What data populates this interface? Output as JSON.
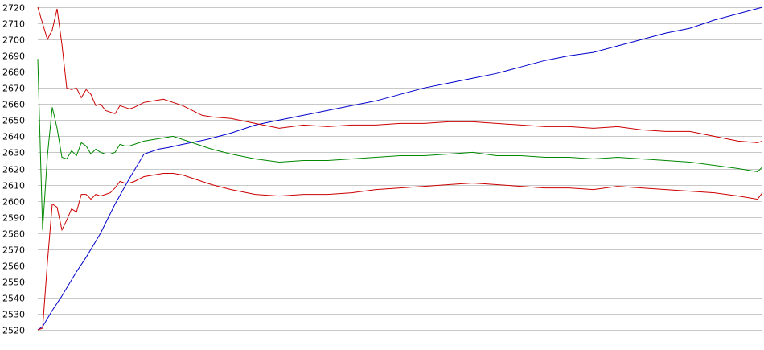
{
  "chart_data": {
    "type": "line",
    "title": "",
    "xlabel": "",
    "ylabel": "",
    "grid": "horizontal",
    "legend": "none",
    "ylim": [
      2520,
      2720
    ],
    "xlim": [
      0,
      150
    ],
    "yticks": [
      2720,
      2710,
      2700,
      2690,
      2680,
      2670,
      2660,
      2650,
      2640,
      2630,
      2620,
      2610,
      2600,
      2590,
      2580,
      2570,
      2560,
      2550,
      2540,
      2530,
      2520
    ],
    "series": [
      {
        "color": "#0000cc",
        "x": [
          0,
          1,
          3,
          5,
          8,
          10,
          13,
          16,
          19,
          22,
          25,
          27,
          30,
          35,
          40,
          45,
          50,
          55,
          60,
          65,
          70,
          75,
          80,
          85,
          90,
          95,
          100,
          105,
          110,
          115,
          120,
          125,
          130,
          135,
          140,
          145,
          150
        ],
        "values": [
          2520,
          2522,
          2532,
          2541,
          2556,
          2565,
          2580,
          2598,
          2614,
          2629,
          2632,
          2633,
          2635,
          2638,
          2642,
          2647,
          2650,
          2653,
          2656,
          2659,
          2662,
          2666,
          2670,
          2673,
          2676,
          2679,
          2683,
          2687,
          2690,
          2692,
          2696,
          2700,
          2704,
          2707,
          2712,
          2716,
          2720
        ]
      },
      {
        "color": "#cc0000",
        "x": [
          0,
          1,
          2,
          3,
          4,
          5,
          6,
          7,
          8,
          9,
          10,
          11,
          12,
          13,
          14,
          15,
          16,
          17,
          18,
          19,
          20,
          22,
          24,
          26,
          28,
          30,
          32,
          34,
          36,
          40,
          45,
          50,
          55,
          60,
          65,
          70,
          75,
          80,
          85,
          90,
          95,
          100,
          105,
          110,
          115,
          120,
          125,
          130,
          135,
          140,
          145,
          149,
          150
        ],
        "values": [
          2720,
          2710,
          2700,
          2706,
          2719,
          2697,
          2670,
          2669,
          2670,
          2664,
          2669,
          2666,
          2659,
          2660,
          2656,
          2655,
          2654,
          2659,
          2658,
          2657,
          2658,
          2661,
          2662,
          2663,
          2661,
          2659,
          2656,
          2653,
          2652,
          2651,
          2648,
          2645,
          2647,
          2646,
          2647,
          2647,
          2648,
          2648,
          2649,
          2649,
          2648,
          2647,
          2646,
          2646,
          2645,
          2646,
          2644,
          2643,
          2643,
          2640,
          2637,
          2636,
          2637
        ]
      },
      {
        "color": "#008800",
        "x": [
          0,
          1,
          2,
          3,
          4,
          5,
          6,
          7,
          8,
          9,
          10,
          11,
          12,
          13,
          14,
          15,
          16,
          17,
          18,
          19,
          20,
          22,
          24,
          26,
          28,
          30,
          32,
          34,
          36,
          40,
          45,
          50,
          55,
          60,
          65,
          70,
          75,
          80,
          85,
          90,
          95,
          100,
          105,
          110,
          115,
          120,
          125,
          130,
          135,
          140,
          145,
          149,
          150
        ],
        "values": [
          2688,
          2582,
          2628,
          2658,
          2645,
          2627,
          2626,
          2631,
          2628,
          2636,
          2634,
          2629,
          2632,
          2630,
          2629,
          2629,
          2630,
          2635,
          2634,
          2634,
          2635,
          2637,
          2638,
          2639,
          2640,
          2638,
          2636,
          2634,
          2632,
          2629,
          2626,
          2624,
          2625,
          2625,
          2626,
          2627,
          2628,
          2628,
          2629,
          2630,
          2628,
          2628,
          2627,
          2627,
          2626,
          2627,
          2626,
          2625,
          2624,
          2622,
          2620,
          2618,
          2621
        ]
      },
      {
        "color": "#cc0000",
        "x": [
          0,
          1,
          2,
          3,
          4,
          5,
          6,
          7,
          8,
          9,
          10,
          11,
          12,
          13,
          14,
          15,
          16,
          17,
          18,
          19,
          20,
          22,
          24,
          26,
          28,
          30,
          32,
          34,
          36,
          40,
          45,
          50,
          55,
          60,
          65,
          70,
          75,
          80,
          85,
          90,
          95,
          100,
          105,
          110,
          115,
          120,
          125,
          130,
          135,
          140,
          145,
          149,
          150
        ],
        "values": [
          2520,
          2521,
          2562,
          2598,
          2596,
          2582,
          2588,
          2595,
          2593,
          2604,
          2604,
          2601,
          2604,
          2603,
          2604,
          2605,
          2608,
          2612,
          2611,
          2611,
          2612,
          2615,
          2616,
          2617,
          2617,
          2616,
          2614,
          2612,
          2610,
          2607,
          2604,
          2603,
          2604,
          2604,
          2605,
          2607,
          2608,
          2609,
          2610,
          2611,
          2610,
          2609,
          2608,
          2608,
          2607,
          2609,
          2608,
          2607,
          2606,
          2605,
          2603,
          2601,
          2605
        ]
      }
    ]
  }
}
